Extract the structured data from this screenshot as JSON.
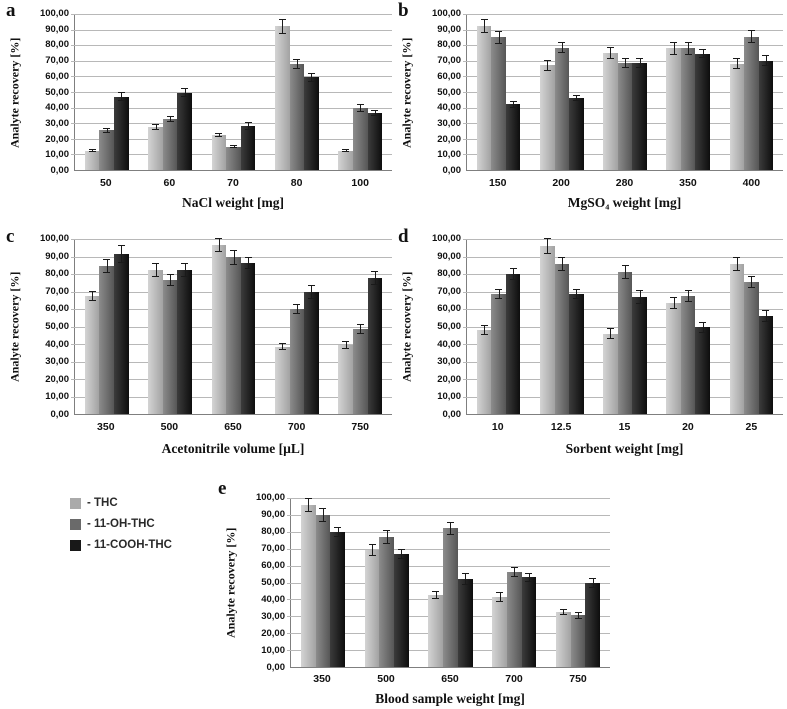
{
  "figure": {
    "panel_letters": [
      "a",
      "b",
      "c",
      "d",
      "e"
    ],
    "y_axis_title": "Analyte recovery [%]",
    "y_tick_values": [
      100,
      90,
      80,
      70,
      60,
      50,
      40,
      30,
      20,
      10,
      0
    ],
    "y_tick_labels": [
      "100,00",
      "90,00",
      "80,00",
      "70,00",
      "60,00",
      "50,00",
      "40,00",
      "30,00",
      "20,00",
      "10,00",
      "0,00"
    ],
    "series": [
      {
        "name": "THC",
        "legend_label": "- THC",
        "swatch": "#aaaaaa",
        "gradient": [
          "#d4d4d4",
          "#a2a2a2"
        ]
      },
      {
        "name": "11-OH-THC",
        "legend_label": "- 11-OH-THC",
        "swatch": "#6a6a6a",
        "gradient": [
          "#8c8c8c",
          "#565656"
        ]
      },
      {
        "name": "11-COOH-THC",
        "legend_label": "- 11-COOH-THC",
        "swatch": "#181818",
        "gradient": [
          "#3c3c3c",
          "#0d0d0d"
        ]
      }
    ],
    "colors": {
      "gridline": "#b8b8b8",
      "axis": "#7f7f7f",
      "error_bar": "#1a1a1a",
      "background": "#ffffff"
    }
  },
  "chart_data": [
    {
      "type": "bar",
      "panel": "a",
      "xlabel": "NaCl weight [mg]",
      "ylabel": "Analyte recovery [%]",
      "ylim": [
        0,
        100
      ],
      "ytick_step": 10,
      "grid": true,
      "legend_position": "separate",
      "categories": [
        "50",
        "60",
        "70",
        "80",
        "100"
      ],
      "series": [
        {
          "name": "THC",
          "values": [
            12.5,
            27.5,
            22.5,
            92,
            12.5
          ],
          "errors": [
            1.2,
            2,
            1.5,
            4.5,
            1
          ]
        },
        {
          "name": "11-OH-THC",
          "values": [
            25.5,
            32.5,
            15,
            68,
            39.5
          ],
          "errors": [
            1.5,
            2,
            1,
            3,
            2.5
          ]
        },
        {
          "name": "11-COOH-THC",
          "values": [
            47,
            49.5,
            28,
            59.5,
            36.5
          ],
          "errors": [
            3,
            3,
            2.5,
            3,
            2
          ]
        }
      ]
    },
    {
      "type": "bar",
      "panel": "b",
      "xlabel": "MgSO₄ weight [mg]",
      "ylabel": "Analyte recovery [%]",
      "ylim": [
        0,
        100
      ],
      "ytick_step": 10,
      "grid": true,
      "legend_position": "separate",
      "categories": [
        "150",
        "200",
        "280",
        "350",
        "400"
      ],
      "series": [
        {
          "name": "THC",
          "values": [
            92.5,
            67,
            75,
            78,
            68
          ],
          "errors": [
            4.5,
            3.5,
            4,
            4,
            3.5
          ]
        },
        {
          "name": "11-OH-THC",
          "values": [
            85,
            78.5,
            68.5,
            78,
            85.5
          ],
          "errors": [
            4,
            3.5,
            3,
            4,
            4
          ]
        },
        {
          "name": "11-COOH-THC",
          "values": [
            42,
            46,
            68.5,
            74.5,
            70
          ],
          "errors": [
            2,
            2,
            3,
            3,
            3.5
          ]
        }
      ]
    },
    {
      "type": "bar",
      "panel": "c",
      "xlabel": "Acetonitrile volume [µL]",
      "ylabel": "Analyte recovery [%]",
      "ylim": [
        0,
        100
      ],
      "ytick_step": 10,
      "grid": true,
      "legend_position": "separate",
      "categories": [
        "350",
        "500",
        "650",
        "700",
        "750"
      ],
      "series": [
        {
          "name": "THC",
          "values": [
            67.5,
            82.5,
            96.5,
            38.5,
            39.5
          ],
          "errors": [
            3,
            4,
            4,
            2,
            2.5
          ]
        },
        {
          "name": "11-OH-THC",
          "values": [
            84.5,
            76.5,
            89.5,
            60,
            48.5
          ],
          "errors": [
            4,
            3.5,
            4.5,
            3,
            3
          ]
        },
        {
          "name": "11-COOH-THC",
          "values": [
            91.5,
            82.5,
            86.5,
            70,
            78
          ],
          "errors": [
            5,
            4,
            3.5,
            4,
            4
          ]
        }
      ]
    },
    {
      "type": "bar",
      "panel": "d",
      "xlabel": "Sorbent weight [mg]",
      "ylabel": "Analyte recovery [%]",
      "ylim": [
        0,
        100
      ],
      "ytick_step": 10,
      "grid": true,
      "legend_position": "separate",
      "categories": [
        "10",
        "12.5",
        "15",
        "20",
        "25"
      ],
      "series": [
        {
          "name": "THC",
          "values": [
            48,
            96,
            46,
            63.5,
            86
          ],
          "errors": [
            3,
            4.5,
            3,
            3.5,
            4
          ]
        },
        {
          "name": "11-OH-THC",
          "values": [
            68.5,
            86,
            81,
            67.5,
            75.5
          ],
          "errors": [
            3,
            4,
            4,
            3.5,
            3.5
          ]
        },
        {
          "name": "11-COOH-THC",
          "values": [
            80,
            68.5,
            67,
            49.5,
            56
          ],
          "errors": [
            3.5,
            3,
            4,
            3,
            3.5
          ]
        }
      ]
    },
    {
      "type": "bar",
      "panel": "e",
      "xlabel": "Blood sample weight [mg]",
      "ylabel": "Analyte recovery [%]",
      "ylim": [
        0,
        100
      ],
      "ytick_step": 10,
      "grid": true,
      "legend_position": "separate",
      "categories": [
        "350",
        "500",
        "650",
        "700",
        "750"
      ],
      "series": [
        {
          "name": "THC",
          "values": [
            96,
            69,
            42.5,
            41.5,
            32.5
          ],
          "errors": [
            4,
            3.5,
            2.5,
            3,
            2
          ]
        },
        {
          "name": "11-OH-THC",
          "values": [
            90,
            77,
            82,
            56,
            30.5
          ],
          "errors": [
            4,
            4,
            4,
            3,
            2
          ]
        },
        {
          "name": "11-COOH-THC",
          "values": [
            80,
            67,
            52,
            53,
            49.5
          ],
          "errors": [
            3,
            3,
            3.5,
            2.5,
            3
          ]
        }
      ]
    }
  ]
}
